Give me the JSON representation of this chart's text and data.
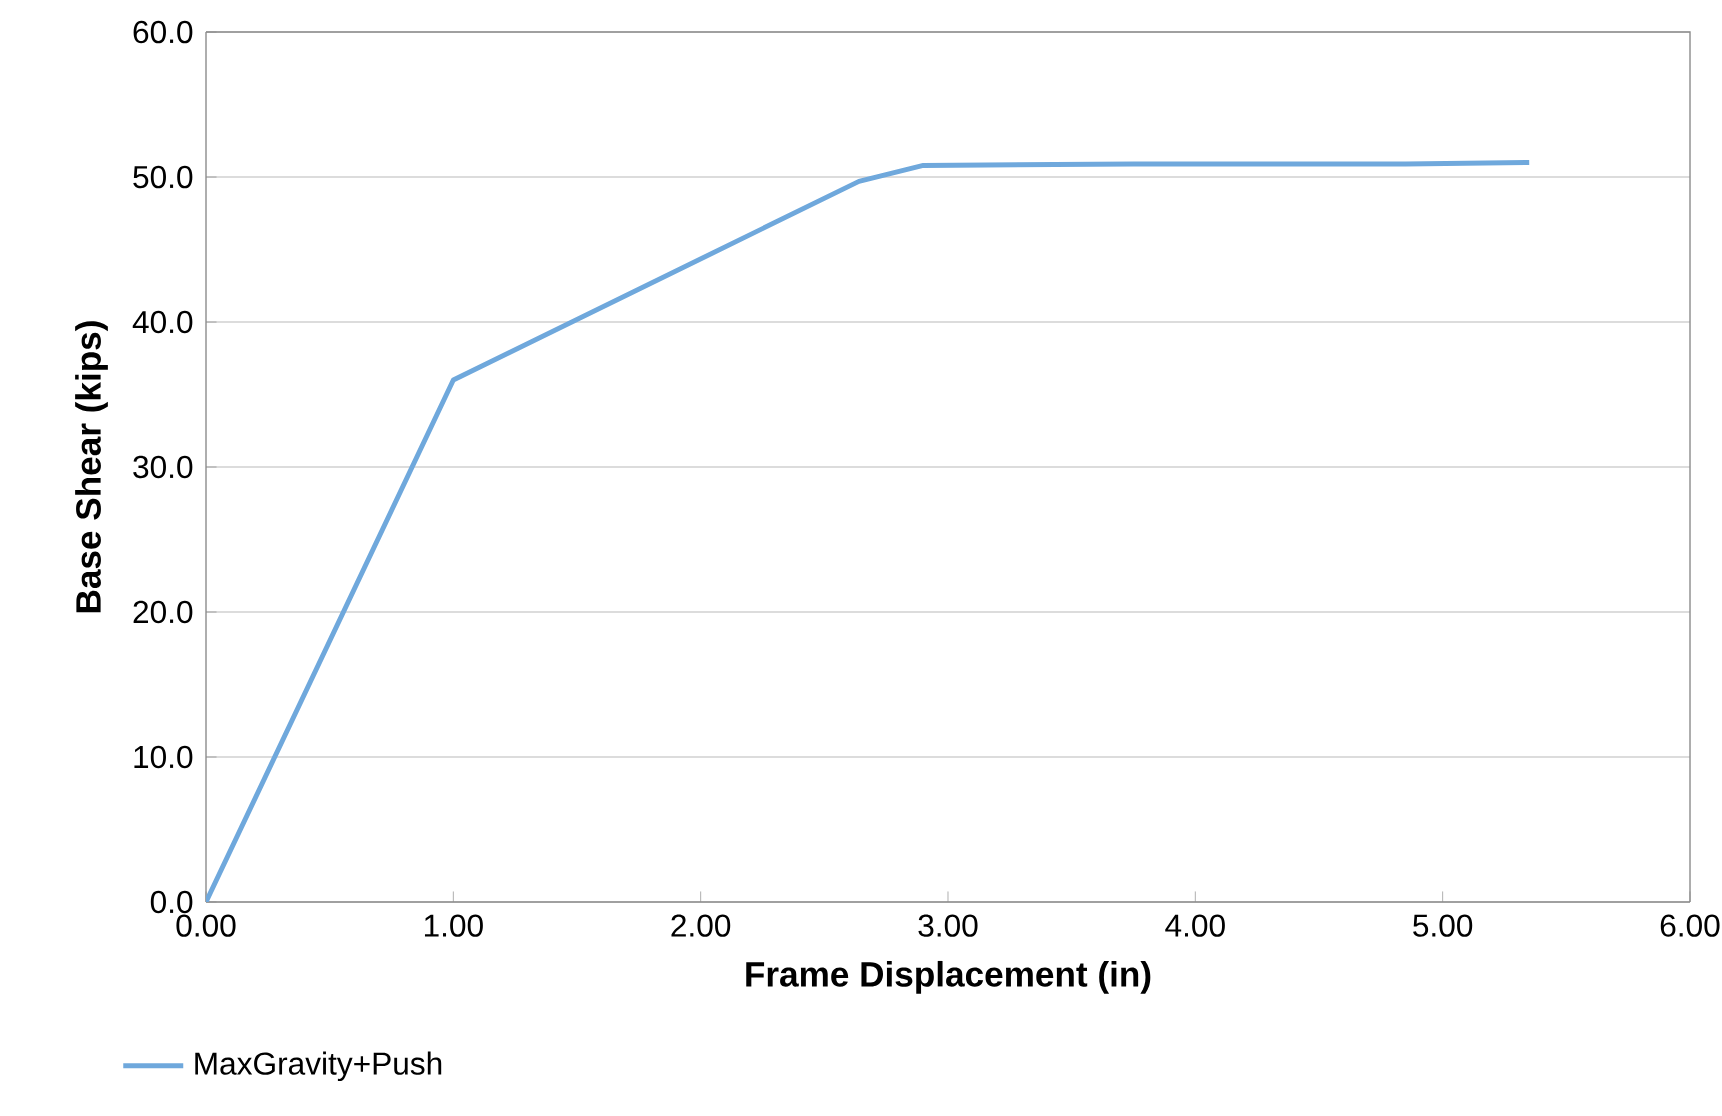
{
  "chart_data": {
    "type": "line",
    "xlabel": "Frame Displacement (in)",
    "ylabel": "Base Shear (kips)",
    "x": [
      0,
      1.0,
      2.64,
      2.9,
      3.75,
      4.85,
      5.35
    ],
    "series": [
      {
        "name": "MaxGravity+Push",
        "color": "#6fa8dc",
        "values": [
          0,
          36.0,
          49.7,
          50.8,
          50.9,
          50.9,
          51.0
        ]
      }
    ],
    "xlim": [
      0,
      6
    ],
    "ylim": [
      0,
      60
    ],
    "xticks": [
      {
        "value": 0,
        "label": "0.00"
      },
      {
        "value": 1,
        "label": "1.00"
      },
      {
        "value": 2,
        "label": "2.00"
      },
      {
        "value": 3,
        "label": "3.00"
      },
      {
        "value": 4,
        "label": "4.00"
      },
      {
        "value": 5,
        "label": "5.00"
      },
      {
        "value": 6,
        "label": "6.00"
      }
    ],
    "yticks": [
      {
        "value": 0,
        "label": "0.0"
      },
      {
        "value": 10,
        "label": "10.0"
      },
      {
        "value": 20,
        "label": "20.0"
      },
      {
        "value": 30,
        "label": "30.0"
      },
      {
        "value": 40,
        "label": "40.0"
      },
      {
        "value": 50,
        "label": "50.0"
      },
      {
        "value": 60,
        "label": "60.0"
      }
    ],
    "grid": "y",
    "legend": "bottom left",
    "marker": "none"
  }
}
